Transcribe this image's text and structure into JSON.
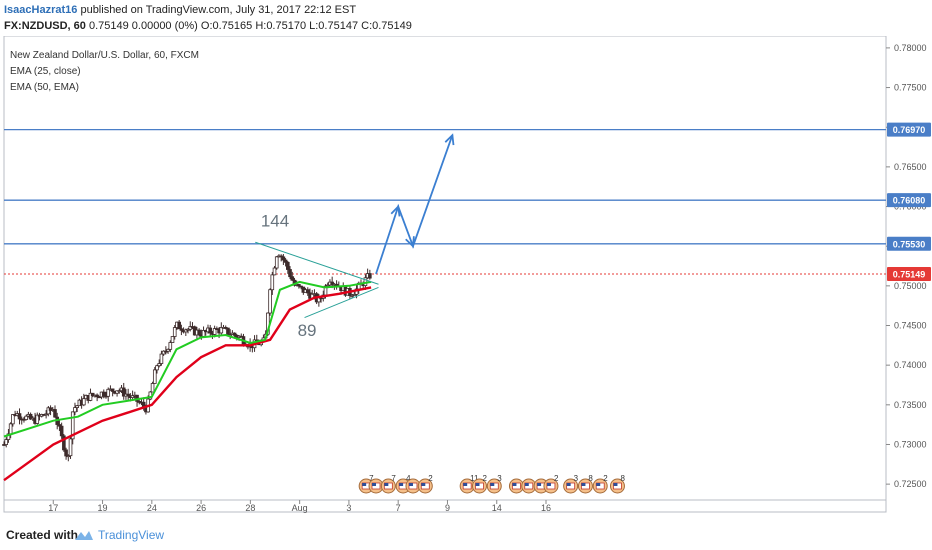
{
  "header": {
    "author": "IsaacHazrat16",
    "published": "published on TradingView.com, July 31, 2017 22:12 EST",
    "symbol_line": "FX:NZDUSD, 60",
    "quote": "0.75149 0.00000 (0%) O:0.75165 H:0.75170 L:0.75147 C:0.75149"
  },
  "legend": {
    "title": "New Zealand Dollar/U.S. Dollar, 60, FXCM",
    "ema1": "EMA (25, close)",
    "ema2": "EMA (50, EMA)"
  },
  "footer": {
    "created_with": "Created with",
    "brand": "TradingView"
  },
  "colors": {
    "ema_fast": "#22cc22",
    "ema_slow": "#e0001a",
    "level": "#4a7ec7",
    "up_candle": "#ffffff",
    "down_candle": "#3d2b2b",
    "current_price": "#e53935"
  },
  "chart_data": {
    "type": "candlestick",
    "symbol": "FX:NZDUSD",
    "timeframe": "60",
    "ylim": [
      0.723,
      0.7815
    ],
    "y_ticks": [
      "0.78000",
      "0.77500",
      "0.77000",
      "0.76500",
      "0.76000",
      "0.75500",
      "0.75000",
      "0.74500",
      "0.74000",
      "0.73500",
      "0.73000",
      "0.72500"
    ],
    "x_ticks": [
      "17",
      "19",
      "24",
      "26",
      "28",
      "Aug",
      "3",
      "7",
      "9",
      "14",
      "16"
    ],
    "x_range_days": [
      -2.0,
      15.9
    ],
    "x_tick_days": [
      -1.0,
      0.0,
      1.0,
      2.0,
      3.0,
      4.0,
      5.0,
      6.0,
      7.0,
      8.0,
      9.0
    ],
    "key_points": [
      {
        "day": -2.0,
        "price": 0.73
      },
      {
        "day": -1.8,
        "price": 0.734
      },
      {
        "day": -1.4,
        "price": 0.733
      },
      {
        "day": -1.0,
        "price": 0.7345
      },
      {
        "day": -0.7,
        "price": 0.728
      },
      {
        "day": -0.6,
        "price": 0.7345
      },
      {
        "day": -0.3,
        "price": 0.736
      },
      {
        "day": 0.0,
        "price": 0.7365
      },
      {
        "day": 0.3,
        "price": 0.737
      },
      {
        "day": 0.7,
        "price": 0.7355
      },
      {
        "day": 0.9,
        "price": 0.7345
      },
      {
        "day": 1.1,
        "price": 0.74
      },
      {
        "day": 1.3,
        "price": 0.742
      },
      {
        "day": 1.5,
        "price": 0.745
      },
      {
        "day": 2.0,
        "price": 0.744
      },
      {
        "day": 2.4,
        "price": 0.7445
      },
      {
        "day": 2.8,
        "price": 0.7435
      },
      {
        "day": 3.0,
        "price": 0.7425
      },
      {
        "day": 3.3,
        "price": 0.743
      },
      {
        "day": 3.4,
        "price": 0.75
      },
      {
        "day": 3.55,
        "price": 0.7545
      },
      {
        "day": 3.7,
        "price": 0.753
      },
      {
        "day": 3.9,
        "price": 0.75
      },
      {
        "day": 4.2,
        "price": 0.749
      },
      {
        "day": 4.4,
        "price": 0.748
      },
      {
        "day": 4.6,
        "price": 0.751
      },
      {
        "day": 4.8,
        "price": 0.75
      },
      {
        "day": 5.0,
        "price": 0.749
      },
      {
        "day": 5.15,
        "price": 0.7495
      },
      {
        "day": 5.3,
        "price": 0.7505
      },
      {
        "day": 5.45,
        "price": 0.7515
      }
    ],
    "ema_fast_points": [
      {
        "day": -2.0,
        "price": 0.731
      },
      {
        "day": -1.0,
        "price": 0.733
      },
      {
        "day": -0.5,
        "price": 0.7335
      },
      {
        "day": 0.0,
        "price": 0.735
      },
      {
        "day": 0.5,
        "price": 0.7355
      },
      {
        "day": 1.0,
        "price": 0.736
      },
      {
        "day": 1.5,
        "price": 0.742
      },
      {
        "day": 2.0,
        "price": 0.7435
      },
      {
        "day": 2.5,
        "price": 0.7438
      },
      {
        "day": 3.0,
        "price": 0.7428
      },
      {
        "day": 3.3,
        "price": 0.7432
      },
      {
        "day": 3.6,
        "price": 0.7495
      },
      {
        "day": 4.0,
        "price": 0.7505
      },
      {
        "day": 4.5,
        "price": 0.7498
      },
      {
        "day": 5.0,
        "price": 0.75
      },
      {
        "day": 5.45,
        "price": 0.7505
      }
    ],
    "ema_slow_points": [
      {
        "day": -2.0,
        "price": 0.7255
      },
      {
        "day": -1.0,
        "price": 0.73
      },
      {
        "day": -0.5,
        "price": 0.7315
      },
      {
        "day": 0.0,
        "price": 0.733
      },
      {
        "day": 0.5,
        "price": 0.734
      },
      {
        "day": 1.0,
        "price": 0.735
      },
      {
        "day": 1.5,
        "price": 0.7385
      },
      {
        "day": 2.0,
        "price": 0.741
      },
      {
        "day": 2.5,
        "price": 0.7425
      },
      {
        "day": 3.0,
        "price": 0.7425
      },
      {
        "day": 3.4,
        "price": 0.7432
      },
      {
        "day": 3.8,
        "price": 0.747
      },
      {
        "day": 4.3,
        "price": 0.7485
      },
      {
        "day": 4.8,
        "price": 0.749
      },
      {
        "day": 5.45,
        "price": 0.7498
      }
    ],
    "levels": [
      {
        "price": 0.7697,
        "label": "0.76970"
      },
      {
        "price": 0.7608,
        "label": "0.76080"
      },
      {
        "price": 0.7553,
        "label": "0.75530"
      }
    ],
    "current_price": {
      "price": 0.75149,
      "label": "0.75149"
    },
    "triangle": {
      "upper": [
        {
          "day": 3.1,
          "price": 0.7555
        },
        {
          "day": 5.6,
          "price": 0.7502
        }
      ],
      "lower": [
        {
          "day": 4.1,
          "price": 0.746
        },
        {
          "day": 5.6,
          "price": 0.7498
        }
      ]
    },
    "projection": [
      {
        "day": 5.55,
        "price": 0.7515
      },
      {
        "day": 6.0,
        "price": 0.76
      },
      {
        "day": 6.3,
        "price": 0.755
      },
      {
        "day": 7.1,
        "price": 0.769
      }
    ],
    "annotations": [
      {
        "text": "144",
        "day": 3.5,
        "price": 0.7575
      },
      {
        "text": "89",
        "day": 4.15,
        "price": 0.7437
      }
    ],
    "event_markers": [
      {
        "day": 5.35,
        "count": "7"
      },
      {
        "day": 5.55,
        "count": ""
      },
      {
        "day": 5.8,
        "count": "7"
      },
      {
        "day": 6.1,
        "count": "4"
      },
      {
        "day": 6.3,
        "count": ""
      },
      {
        "day": 6.55,
        "count": "2"
      },
      {
        "day": 7.4,
        "count": "11"
      },
      {
        "day": 7.65,
        "count": "2"
      },
      {
        "day": 7.95,
        "count": "3"
      },
      {
        "day": 8.4,
        "count": ""
      },
      {
        "day": 8.65,
        "count": ""
      },
      {
        "day": 8.9,
        "count": ""
      },
      {
        "day": 9.1,
        "count": "2"
      },
      {
        "day": 9.5,
        "count": "3"
      },
      {
        "day": 9.8,
        "count": "8"
      },
      {
        "day": 10.1,
        "count": "2"
      },
      {
        "day": 10.45,
        "count": "8"
      }
    ]
  }
}
